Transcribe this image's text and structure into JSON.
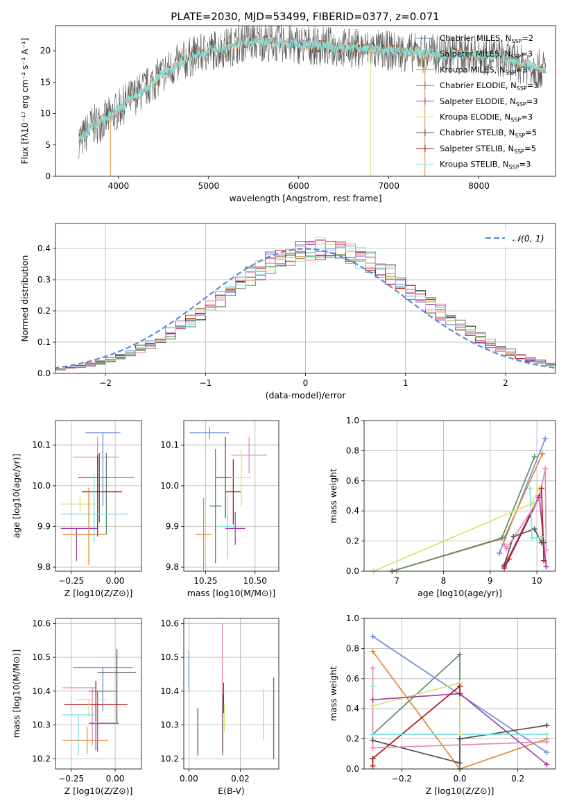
{
  "figure_title": "PLATE=2030, MJD=53499, FIBERID=0377, z=0.071",
  "colors": {
    "chabrier_miles": "#6f8fdc",
    "salpeter_miles": "#b0b0b0",
    "kroupa_miles": "#e08a30",
    "chabrier_elodie": "#5a8a6a",
    "salpeter_elodie": "#a040b0",
    "kroupa_elodie": "#d8e070",
    "chabrier_stelib": "#505050",
    "salpeter_stelib": "#b01818",
    "kroupa_stelib": "#80e0e0",
    "pink": "#e888b8",
    "normal": "#5b8ad8",
    "grid": "#b0b0b0"
  },
  "chart_data": [
    {
      "type": "line",
      "panel": "spectrum",
      "xlabel": "wavelength [Angstrom, rest frame]",
      "ylabel": "Flux [fλ10⁻¹⁷ erg cm⁻² s⁻¹ A⁻¹]",
      "xlim": [
        3300,
        8850
      ],
      "ylim": [
        0,
        24
      ],
      "xticks": [
        "4000",
        "5000",
        "6000",
        "7000",
        "8000"
      ],
      "yticks": [
        "0",
        "5",
        "10",
        "15",
        "20"
      ],
      "grid": false,
      "legend_position": "right",
      "legend": [
        "Chabrier MILES, N_SSP=2",
        "Salpeter MILES, N_SSP=3",
        "Kroupa MILES, N_SSP=3",
        "Chabrier ELODIE, N_SSP=3",
        "Salpeter ELODIE, N_SSP=3",
        "Kroupa ELODIE, N_SSP=3",
        "Chabrier STELIB, N_SSP=5",
        "Salpeter STELIB, N_SSP=5",
        "Kroupa STELIB, N_SSP=3"
      ],
      "continuum_knots": {
        "x": [
          3600,
          3700,
          3850,
          3950,
          4100,
          4300,
          4500,
          4800,
          5000,
          5200,
          5400,
          5600,
          6000,
          6500,
          7000,
          7500,
          7900,
          8200,
          8700
        ],
        "y": [
          6,
          8,
          9,
          10,
          12,
          14,
          16.5,
          19,
          20,
          20.5,
          21.5,
          21.5,
          21,
          20.5,
          20,
          19.5,
          19.5,
          19,
          17
        ]
      },
      "data_range": [
        3560,
        8740
      ]
    },
    {
      "type": "line",
      "panel": "residuals",
      "xlabel": "(data-model)/error",
      "ylabel": "Normed distribution",
      "xlim": [
        -2.5,
        2.5
      ],
      "ylim": [
        0,
        0.48
      ],
      "xticks": [
        "−2",
        "−1",
        "0",
        "1",
        "2"
      ],
      "yticks": [
        "0.0",
        "0.1",
        "0.2",
        "0.3",
        "0.4"
      ],
      "grid": true,
      "legend_position": "top-right",
      "legend": [
        "𝒩(0, 1)"
      ],
      "series": [
        {
          "name": "N(0,1)",
          "mean": 0,
          "sigma": 1
        }
      ]
    },
    {
      "type": "scatter",
      "panel": "age-vs-Z",
      "xlabel": "Z [log10(Z/Z⊙)]",
      "ylabel": "age  [log10(age/yr)]",
      "xlim": [
        -0.34,
        0.15
      ],
      "ylim": [
        9.79,
        10.16
      ],
      "xticks": [
        "−0.25",
        "0.00"
      ],
      "yticks": [
        "9.8",
        "9.9",
        "10.0",
        "10.1"
      ],
      "grid": true,
      "points": [
        {
          "x": -0.07,
          "y": 10.13,
          "xerr": [
            0.1,
            0.1
          ],
          "yerr": [
            0.18,
            0.0
          ]
        },
        {
          "x": -0.09,
          "y": 10.02,
          "xerr": [
            0.12,
            0.05
          ],
          "yerr": [
            0.11,
            0.06
          ]
        },
        {
          "x": -0.1,
          "y": 10.07,
          "xerr": [
            0.14,
            0.12
          ],
          "yerr": [
            0.1,
            0.05
          ]
        },
        {
          "x": -0.05,
          "y": 10.02,
          "xerr": [
            0.06,
            0.16
          ],
          "yerr": [
            0.14,
            0.06
          ]
        },
        {
          "x": -0.1,
          "y": 9.985,
          "xerr": [
            0.09,
            0.14
          ],
          "yerr": [
            0.11,
            0.09
          ]
        },
        {
          "x": -0.2,
          "y": 9.955,
          "xerr": [
            0.11,
            0.1
          ],
          "yerr": [
            0.02,
            0.02
          ]
        },
        {
          "x": -0.12,
          "y": 9.93,
          "xerr": [
            0.19,
            0.19
          ],
          "yerr": [
            0.07,
            0.1
          ]
        },
        {
          "x": -0.22,
          "y": 9.895,
          "xerr": [
            0.09,
            0.12
          ],
          "yerr": [
            0.08,
            0.0
          ]
        },
        {
          "x": -0.15,
          "y": 9.88,
          "xerr": [
            0.15,
            0.1
          ],
          "yerr": [
            0.075,
            0.115
          ]
        }
      ]
    },
    {
      "type": "scatter",
      "panel": "age-vs-mass",
      "xlabel": "mass [log10(M/M⊙)]",
      "ylabel": "",
      "xlim": [
        10.14,
        10.62
      ],
      "ylim": [
        9.79,
        10.16
      ],
      "xticks": [
        "10.25",
        "10.50"
      ],
      "yticks": [
        "9.8",
        "9.9",
        "10.0",
        "10.1"
      ],
      "grid": true,
      "points": [
        {
          "x": 10.27,
          "y": 10.13,
          "xerr": [
            0.1,
            0.1
          ],
          "yerr": [
            0.015,
            0.015
          ]
        },
        {
          "x": 10.35,
          "y": 10.02,
          "xerr": [
            0.05,
            0.05
          ],
          "yerr": [
            0.1,
            0.1
          ]
        },
        {
          "x": 10.47,
          "y": 10.075,
          "xerr": [
            0.09,
            0.09
          ],
          "yerr": [
            0.045,
            0.045
          ]
        },
        {
          "x": 10.3,
          "y": 9.95,
          "xerr": [
            0.03,
            0.03
          ],
          "yerr": [
            0.14,
            0.14
          ]
        },
        {
          "x": 10.39,
          "y": 9.985,
          "xerr": [
            0.04,
            0.04
          ],
          "yerr": [
            0.08,
            0.08
          ]
        },
        {
          "x": 10.43,
          "y": 10.02,
          "xerr": [
            0.05,
            0.05
          ],
          "yerr": [
            0.07,
            0.07
          ]
        },
        {
          "x": 10.36,
          "y": 9.9,
          "xerr": [
            0.04,
            0.04
          ],
          "yerr": [
            0.08,
            0.08
          ]
        },
        {
          "x": 10.4,
          "y": 9.895,
          "xerr": [
            0.05,
            0.05
          ],
          "yerr": [
            0.04,
            0.04
          ]
        },
        {
          "x": 10.24,
          "y": 9.88,
          "xerr": [
            0.04,
            0.04
          ],
          "yerr": [
            0.09,
            0.09
          ]
        }
      ]
    },
    {
      "type": "line",
      "panel": "weight-vs-age",
      "xlabel": "age  [log10(age/yr)]",
      "ylabel": "mass weight",
      "xlim": [
        6.3,
        10.4
      ],
      "ylim": [
        0,
        1
      ],
      "xticks": [
        "7",
        "8",
        "9",
        "10"
      ],
      "yticks": [
        "0.0",
        "0.2",
        "0.4",
        "0.6",
        "0.8",
        "1.0"
      ],
      "grid": true,
      "series": [
        {
          "name": "Chabrier MILES",
          "x": [
            9.2,
            10.18
          ],
          "y": [
            0.12,
            0.88
          ]
        },
        {
          "name": "Kroupa MILES",
          "x": [
            6.9,
            9.3,
            10.12
          ],
          "y": [
            0.0,
            0.22,
            0.78
          ]
        },
        {
          "name": "Chabrier ELODIE",
          "x": [
            6.9,
            9.25,
            9.95
          ],
          "y": [
            0.0,
            0.22,
            0.76
          ]
        },
        {
          "name": "Kroupa ELODIE",
          "x": [
            6.5,
            9.9,
            10.05
          ],
          "y": [
            0.0,
            0.45,
            0.55
          ]
        },
        {
          "name": "Salpeter ELODIE",
          "x": [
            9.3,
            10.05,
            10.2
          ],
          "y": [
            0.03,
            0.5,
            0.03
          ]
        },
        {
          "name": "Chabrier STELIB",
          "x": [
            9.3,
            9.5,
            9.95,
            10.1,
            10.15
          ],
          "y": [
            0.04,
            0.23,
            0.28,
            0.19,
            0.19
          ]
        },
        {
          "name": "Salpeter STELIB",
          "x": [
            9.3,
            9.4,
            10.05,
            10.1,
            10.15
          ],
          "y": [
            0.02,
            0.08,
            0.49,
            0.55,
            0.07
          ]
        },
        {
          "name": "Kroupa STELIB",
          "x": [
            9.85,
            9.9,
            10.0,
            10.1
          ],
          "y": [
            0.55,
            0.22,
            0.22,
            0.23
          ]
        },
        {
          "name": "Pink",
          "x": [
            9.3,
            9.35,
            10.05,
            10.18,
            10.2
          ],
          "y": [
            0.18,
            0.15,
            0.48,
            0.68,
            0.14
          ]
        }
      ]
    },
    {
      "type": "scatter",
      "panel": "mass-vs-Z",
      "xlabel": "Z [log10(Z/Z⊙)]",
      "ylabel": "mass [log10(M/M⊙)]",
      "xlim": [
        -0.34,
        0.15
      ],
      "ylim": [
        10.17,
        10.615
      ],
      "xticks": [
        "−0.25",
        "0.00"
      ],
      "yticks": [
        "10.2",
        "10.3",
        "10.4",
        "10.5",
        "10.6"
      ],
      "grid": true,
      "points": [
        {
          "x": -0.07,
          "y": 10.47,
          "xerr": [
            0.17,
            0.17
          ],
          "yerr": [
            0.13,
            0.0
          ]
        },
        {
          "x": 0.01,
          "y": 10.455,
          "xerr": [
            0.11,
            0.11
          ],
          "yerr": [
            0.15,
            0.07
          ]
        },
        {
          "x": -0.13,
          "y": 10.41,
          "xerr": [
            0.17,
            0.02
          ],
          "yerr": [
            0.17,
            0.0
          ]
        },
        {
          "x": -0.1,
          "y": 10.4,
          "xerr": [
            0.05,
            0.11
          ],
          "yerr": [
            0.18,
            0.0
          ]
        },
        {
          "x": -0.11,
          "y": 10.36,
          "xerr": [
            0.18,
            0.18
          ],
          "yerr": [
            0.05,
            0.07
          ]
        },
        {
          "x": -0.15,
          "y": 10.375,
          "xerr": [
            0.07,
            0.1
          ],
          "yerr": [
            0.05,
            0.0
          ]
        },
        {
          "x": -0.21,
          "y": 10.33,
          "xerr": [
            0.09,
            0.12
          ],
          "yerr": [
            0.12,
            0.0
          ]
        },
        {
          "x": -0.11,
          "y": 10.305,
          "xerr": [
            0.04,
            0.13
          ],
          "yerr": [
            0.08,
            0.0
          ]
        },
        {
          "x": -0.16,
          "y": 10.255,
          "xerr": [
            0.14,
            0.12
          ],
          "yerr": [
            0.04,
            0.04
          ]
        }
      ]
    },
    {
      "type": "scatter",
      "panel": "mass-vs-EBV",
      "xlabel": "E(B-V)",
      "ylabel": "",
      "xlim": [
        -0.002,
        0.035
      ],
      "ylim": [
        10.17,
        10.615
      ],
      "xticks": [
        "0.00",
        "0.02"
      ],
      "yticks": [
        "10.2",
        "10.3",
        "10.4",
        "10.5",
        "10.6"
      ],
      "grid": true,
      "points": [
        {
          "x": 0.0,
          "y": 10.46,
          "yerr": [
            0.06,
            0.06
          ]
        },
        {
          "x": 0.0035,
          "y": 10.28,
          "yerr": [
            0.07,
            0.07
          ]
        },
        {
          "x": 0.013,
          "y": 10.36,
          "yerr": [
            0.14,
            0.24
          ]
        },
        {
          "x": 0.0132,
          "y": 10.3,
          "yerr": [
            0.09,
            0.09
          ]
        },
        {
          "x": 0.0135,
          "y": 10.38,
          "yerr": [
            0.045,
            0.045
          ]
        },
        {
          "x": 0.0138,
          "y": 10.32,
          "yerr": [
            0.04,
            0.04
          ]
        },
        {
          "x": 0.029,
          "y": 10.33,
          "yerr": [
            0.075,
            0.075
          ]
        },
        {
          "x": 0.033,
          "y": 10.32,
          "yerr": [
            0.12,
            0.12
          ]
        }
      ]
    },
    {
      "type": "line",
      "panel": "weight-vs-Z",
      "xlabel": "Z [log10(Z/Z⊙)]",
      "ylabel": "mass weight",
      "xlim": [
        -0.33,
        0.33
      ],
      "ylim": [
        0,
        1
      ],
      "xticks": [
        "−0.2",
        "0.0",
        "0.2"
      ],
      "yticks": [
        "0.0",
        "0.2",
        "0.4",
        "0.6",
        "0.8",
        "1.0"
      ],
      "grid": true,
      "series": [
        {
          "name": "Chabrier MILES",
          "x": [
            -0.3,
            0.3
          ],
          "y": [
            0.88,
            0.11
          ]
        },
        {
          "name": "Kroupa MILES",
          "x": [
            -0.3,
            0.0,
            0.3
          ],
          "y": [
            0.78,
            0.0,
            0.2
          ]
        },
        {
          "name": "Chabrier ELODIE",
          "x": [
            -0.3,
            0.0,
            0.0
          ],
          "y": [
            0.23,
            0.76,
            0.0
          ]
        },
        {
          "name": "Kroupa ELODIE",
          "x": [
            -0.3,
            0.0,
            0.0
          ],
          "y": [
            0.42,
            0.57,
            0.23
          ]
        },
        {
          "name": "Salpeter ELODIE",
          "x": [
            -0.3,
            0.0,
            0.3
          ],
          "y": [
            0.46,
            0.5,
            0.03
          ]
        },
        {
          "name": "Chabrier STELIB",
          "x": [
            -0.3,
            0.0,
            0.0,
            0.3
          ],
          "y": [
            0.19,
            0.04,
            0.2,
            0.29
          ]
        },
        {
          "name": "Salpeter STELIB",
          "x": [
            -0.3,
            -0.3,
            0.0,
            0.0
          ],
          "y": [
            0.02,
            0.07,
            0.55,
            0.5
          ]
        },
        {
          "name": "Kroupa STELIB",
          "x": [
            -0.3,
            -0.3,
            0.3
          ],
          "y": [
            0.55,
            0.23,
            0.23
          ]
        },
        {
          "name": "Pink",
          "x": [
            -0.3,
            -0.3,
            0.3
          ],
          "y": [
            0.67,
            0.14,
            0.18
          ]
        }
      ]
    }
  ]
}
